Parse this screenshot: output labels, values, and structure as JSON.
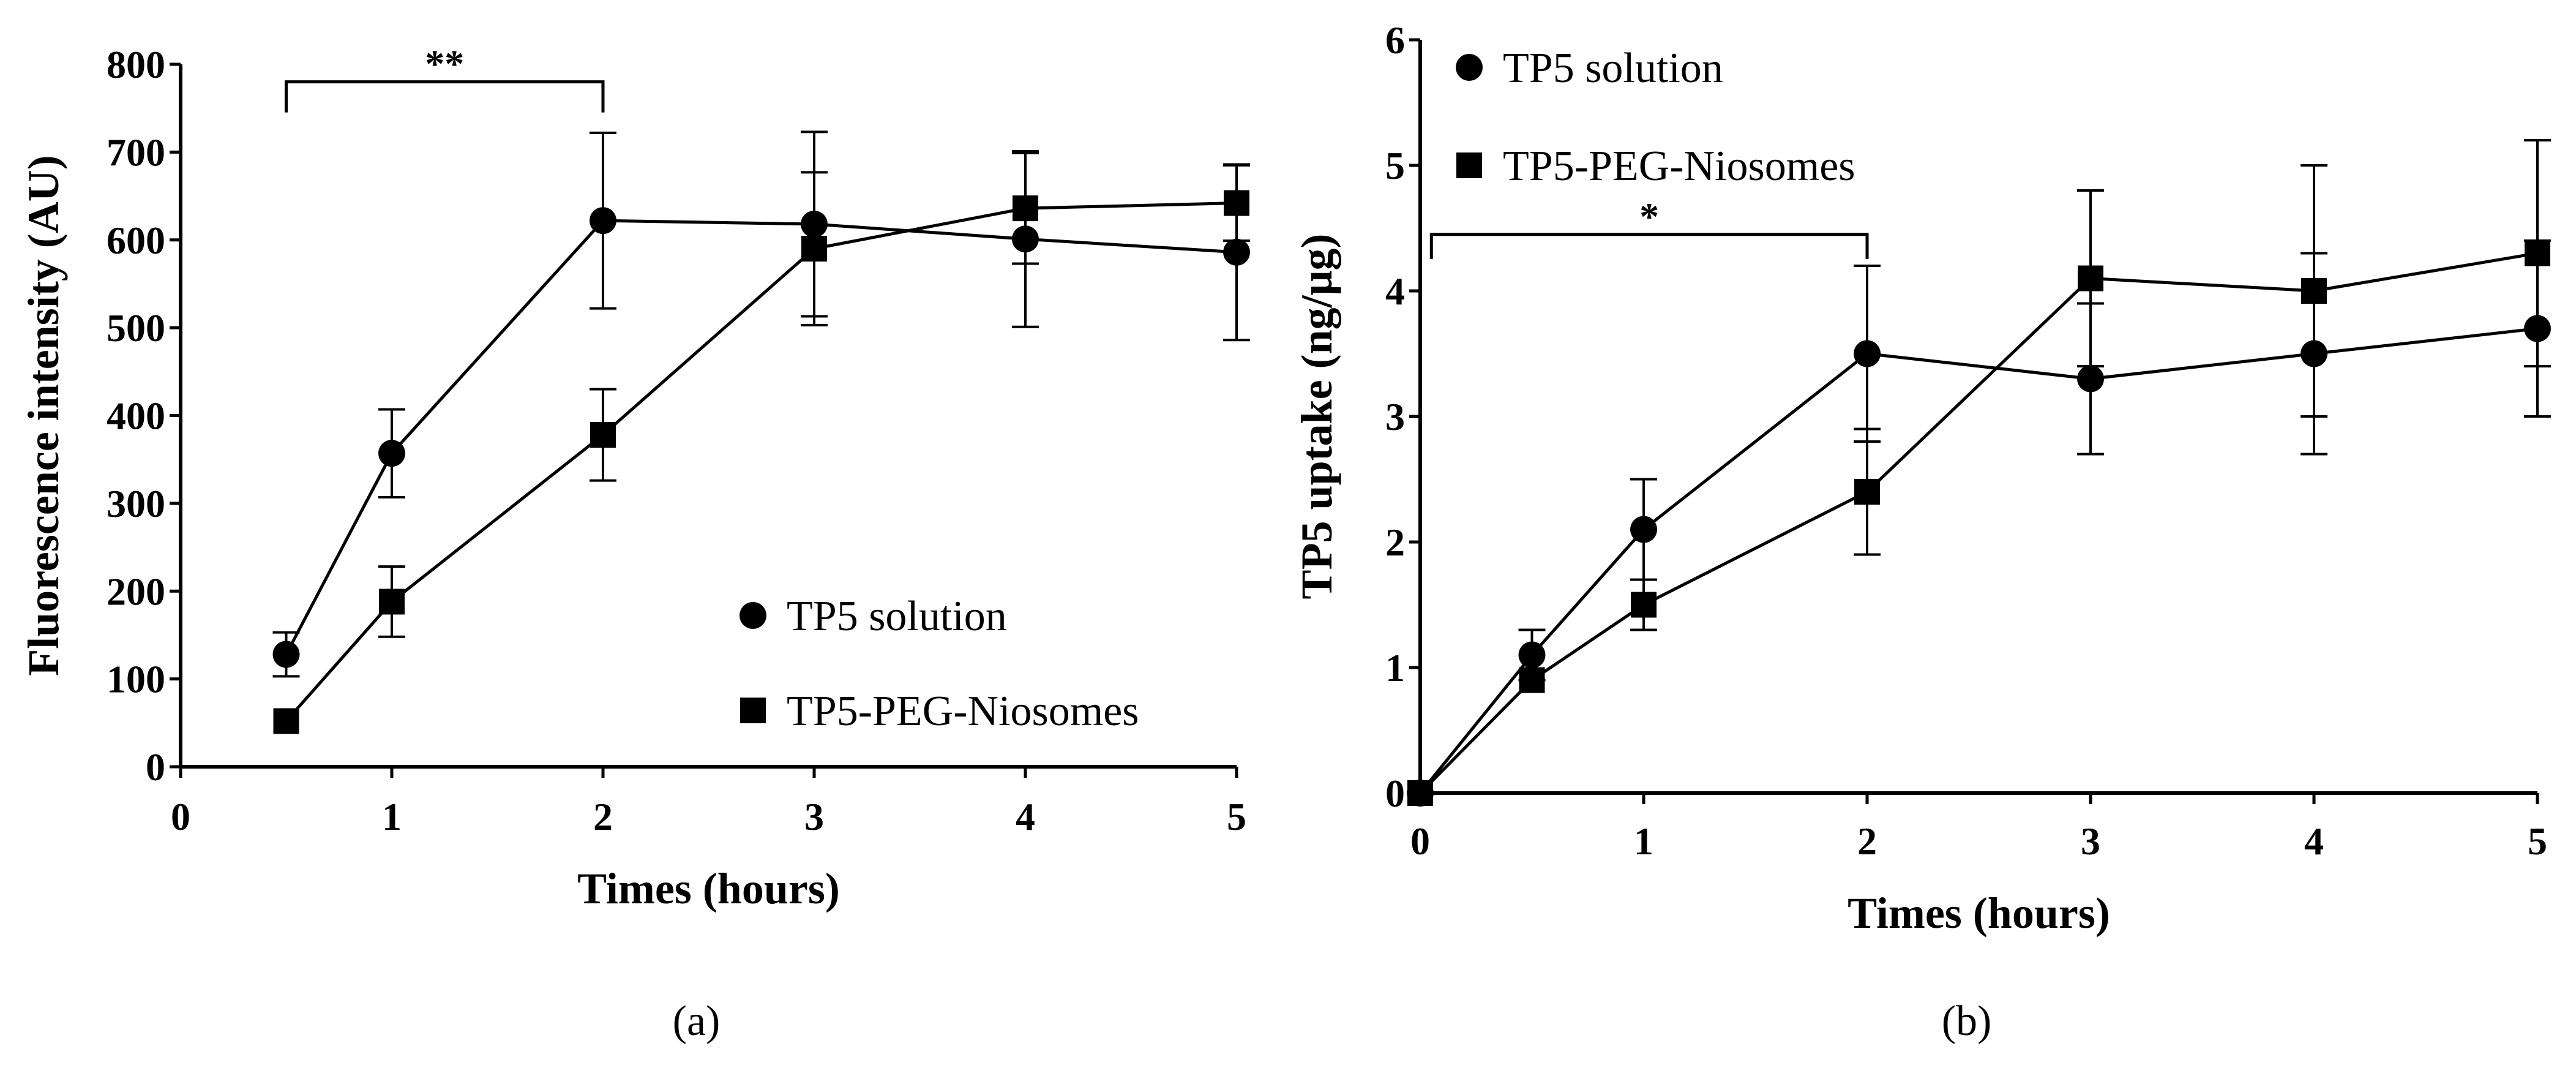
{
  "chart_data": [
    {
      "panel": "a",
      "panel_label": "(a)",
      "type": "line",
      "xlabel": "Times (hours)",
      "ylabel": "Fluorescence intensity (AU)",
      "xlim": [
        0,
        5
      ],
      "ylim": [
        0,
        800
      ],
      "xticks": [
        0,
        1,
        2,
        3,
        4,
        5
      ],
      "yticks": [
        0,
        100,
        200,
        300,
        400,
        500,
        600,
        700,
        800
      ],
      "grid": false,
      "legend_position": "bottom-right",
      "series": [
        {
          "name": "TP5 solution",
          "marker": "circle",
          "x": [
            0.5,
            1,
            2,
            3,
            4,
            5
          ],
          "y": [
            128,
            357,
            622,
            618,
            601,
            586
          ],
          "err": [
            25,
            50,
            100,
            105,
            100,
            100
          ]
        },
        {
          "name": "TP5-PEG-Niosomes",
          "marker": "square",
          "x": [
            0.5,
            1,
            2,
            3,
            4,
            5
          ],
          "y": [
            52,
            188,
            378,
            590,
            636,
            642
          ],
          "err": [
            0,
            40,
            52,
            87,
            63,
            43
          ]
        }
      ],
      "annotation": {
        "text": "**",
        "x_start": 0.5,
        "x_end": 2,
        "y": 780
      }
    },
    {
      "panel": "b",
      "panel_label": "(b)",
      "type": "line",
      "xlabel": "Times (hours)",
      "ylabel": "TP5 uptake (ng/μg)",
      "xlim": [
        0,
        5
      ],
      "ylim": [
        0,
        6
      ],
      "xticks": [
        0,
        1,
        2,
        3,
        4,
        5
      ],
      "yticks": [
        0,
        1,
        2,
        3,
        4,
        5,
        6
      ],
      "grid": false,
      "legend_position": "top-left",
      "series": [
        {
          "name": "TP5 solution",
          "marker": "circle",
          "x": [
            0,
            0.5,
            1,
            2,
            3,
            4,
            5
          ],
          "y": [
            0,
            1.1,
            2.1,
            3.5,
            3.3,
            3.5,
            3.7
          ],
          "err": [
            0,
            0.2,
            0.4,
            0.7,
            0.6,
            0.8,
            0.7
          ]
        },
        {
          "name": "TP5-PEG-Niosomes",
          "marker": "square",
          "x": [
            0,
            0.5,
            1,
            2,
            3,
            4,
            5
          ],
          "y": [
            0,
            0.9,
            1.5,
            2.4,
            4.1,
            4.0,
            4.3
          ],
          "err": [
            0,
            0,
            0.2,
            0.5,
            0.7,
            1.0,
            0.9
          ]
        }
      ],
      "annotation": {
        "text": "*",
        "x_start": 0.05,
        "x_end": 2,
        "y": 4.45
      }
    }
  ]
}
